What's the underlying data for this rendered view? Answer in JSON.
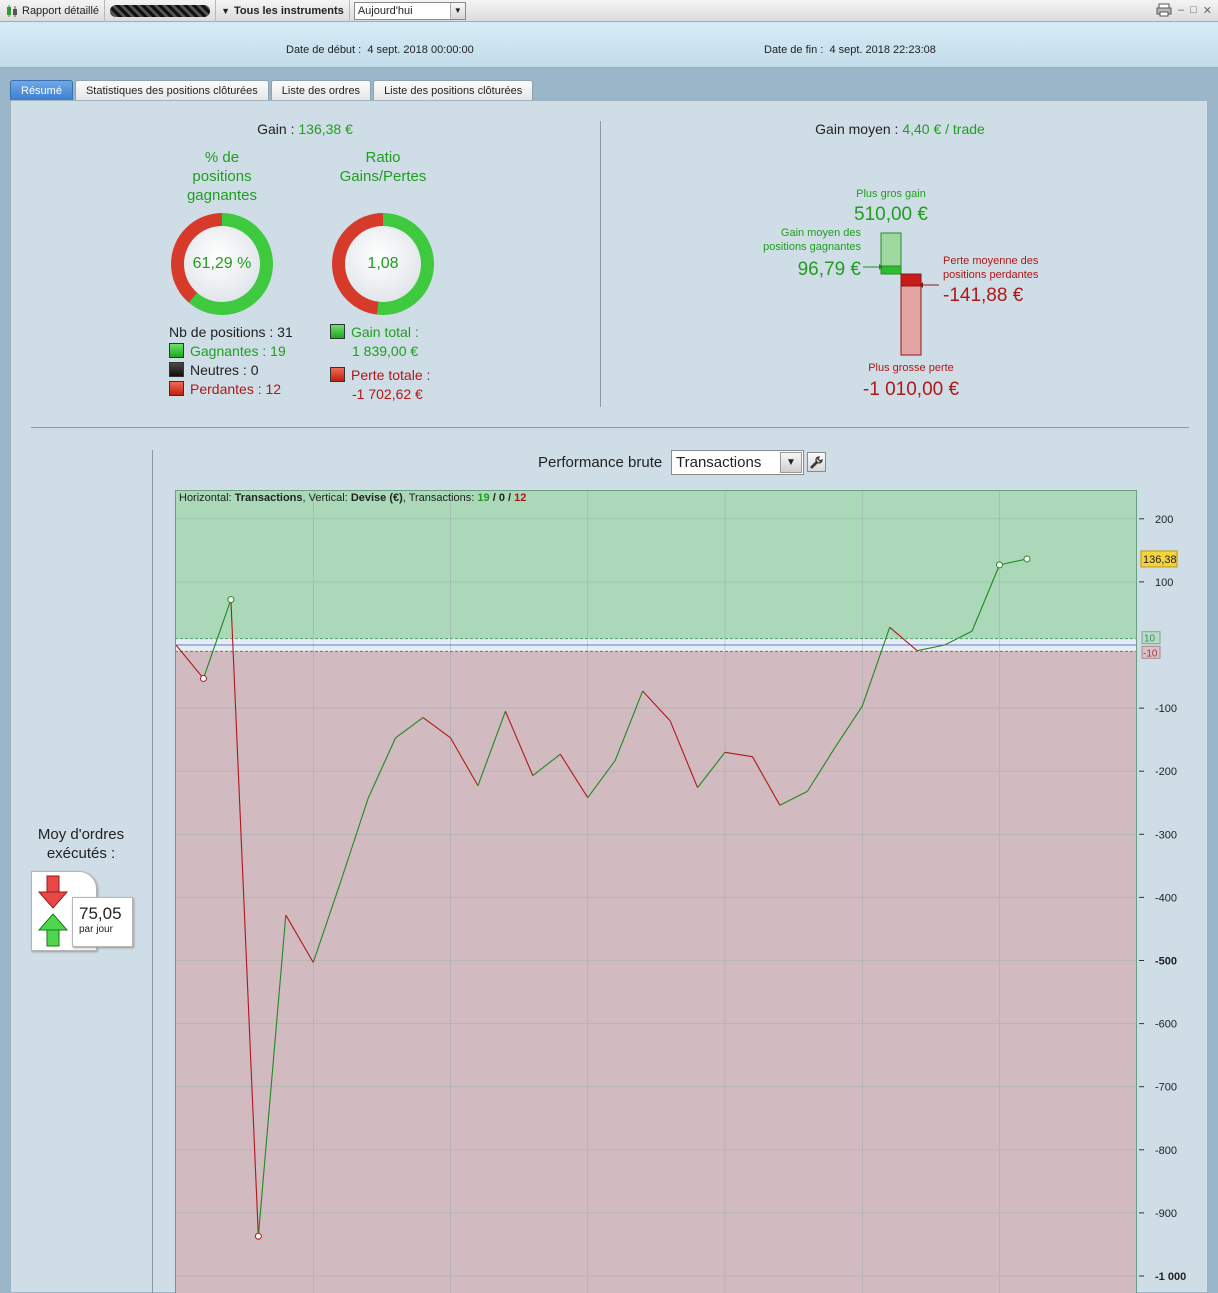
{
  "toolbar": {
    "report_label": "Rapport détaillé",
    "instruments_label": "Tous les instruments",
    "period_value": "Aujourd'hui"
  },
  "dates": {
    "start_label": "Date de début :",
    "start_value": "4 sept. 2018 00:00:00",
    "end_label": "Date de fin :",
    "end_value": "4 sept. 2018 22:23:08"
  },
  "tabs": [
    {
      "label": "Résumé"
    },
    {
      "label": "Statistiques des positions clôturées"
    },
    {
      "label": "Liste des ordres"
    },
    {
      "label": "Liste des positions clôturées"
    }
  ],
  "summary": {
    "gain_label": "Gain :",
    "gain_value": "136,38 €",
    "win_pct_title": "% de positions gagnantes",
    "win_pct_value": "61,29 %",
    "win_pct_fraction": 0.6129,
    "ratio_title": "Ratio Gains/Pertes",
    "ratio_value": "1,08",
    "ratio_fraction": 0.519,
    "positions_label": "Nb de positions : 31",
    "winning_label": "Gagnantes : 19",
    "neutral_label": "Neutres : 0",
    "losing_label": "Perdantes : 12",
    "total_gain_label": "Gain total :",
    "total_gain_value": "1 839,00 €",
    "total_loss_label": "Perte totale :",
    "total_loss_value": "-1 702,62 €"
  },
  "average": {
    "label": "Gain moyen :",
    "value": "4,40 € / trade",
    "biggest_gain_label": "Plus gros gain",
    "biggest_gain_value": "510,00 €",
    "avg_win_label_1": "Gain moyen des",
    "avg_win_label_2": "positions gagnantes",
    "avg_win_value": "96,79 €",
    "avg_loss_label_1": "Perte moyenne des",
    "avg_loss_label_2": "positions perdantes",
    "avg_loss_value": "-141,88 €",
    "biggest_loss_label": "Plus grosse perte",
    "biggest_loss_value": "-1 010,00 €"
  },
  "orders": {
    "title_1": "Moy d'ordres",
    "title_2": "exécutés :",
    "value": "75,05",
    "unit": "par jour"
  },
  "performance": {
    "title": "Performance brute",
    "mode": "Transactions",
    "info_prefix": "Horizontal:",
    "info_h": "Transactions",
    "info_mid": ", Vertical:",
    "info_v": "Devise (€)",
    "info_tr": ", Transactions:",
    "win_count": "19",
    "slash1": " / ",
    "neutral_count": "0",
    "slash2": " / ",
    "loss_count": "12",
    "current_label": "136,38",
    "upper_band_label": "10",
    "lower_band_label": "-10",
    "colors": {
      "win": "#1e8a1e",
      "loss": "#b01818",
      "win_zone": "#aad8b9",
      "loss_zone": "#d1bac0"
    }
  },
  "chart_data": {
    "type": "line",
    "title": "Performance brute",
    "xlabel": "Transactions",
    "ylabel": "Devise (€)",
    "ylim": [
      -1000,
      240
    ],
    "y_ticks": [
      "200",
      "100",
      "-100",
      "-200",
      "-300",
      "-400",
      "-500",
      "-600",
      "-700",
      "-800",
      "-900",
      "-1 000"
    ],
    "y_tick_values": [
      200,
      100,
      -100,
      -200,
      -300,
      -400,
      -500,
      -600,
      -700,
      -800,
      -900,
      -1000
    ],
    "x": [
      0,
      1,
      2,
      3,
      4,
      5,
      6,
      7,
      8,
      9,
      10,
      11,
      12,
      13,
      14,
      15,
      16,
      17,
      18,
      19,
      20,
      21,
      22,
      23,
      24,
      25,
      26,
      27,
      28,
      29,
      30,
      31
    ],
    "values": [
      0,
      -53,
      72,
      -937,
      -428,
      -503,
      -375,
      -243,
      -147,
      -115,
      -147,
      -223,
      -105,
      -207,
      -173,
      -242,
      -183,
      -73,
      -120,
      -226,
      -170,
      -177,
      -254,
      -232,
      -163,
      -97,
      28,
      -9,
      0,
      22,
      127,
      136.38
    ],
    "markers": [
      1,
      2,
      3,
      30,
      31
    ],
    "series": [
      {
        "name": "Transactions",
        "values": [
          0,
          -53,
          72,
          -937,
          -428,
          -503,
          -375,
          -243,
          -147,
          -115,
          -147,
          -223,
          -105,
          -207,
          -173,
          -242,
          -183,
          -73,
          -120,
          -226,
          -170,
          -177,
          -254,
          -232,
          -163,
          -97,
          28,
          -9,
          0,
          22,
          127,
          136.38
        ]
      }
    ],
    "grid": true
  }
}
